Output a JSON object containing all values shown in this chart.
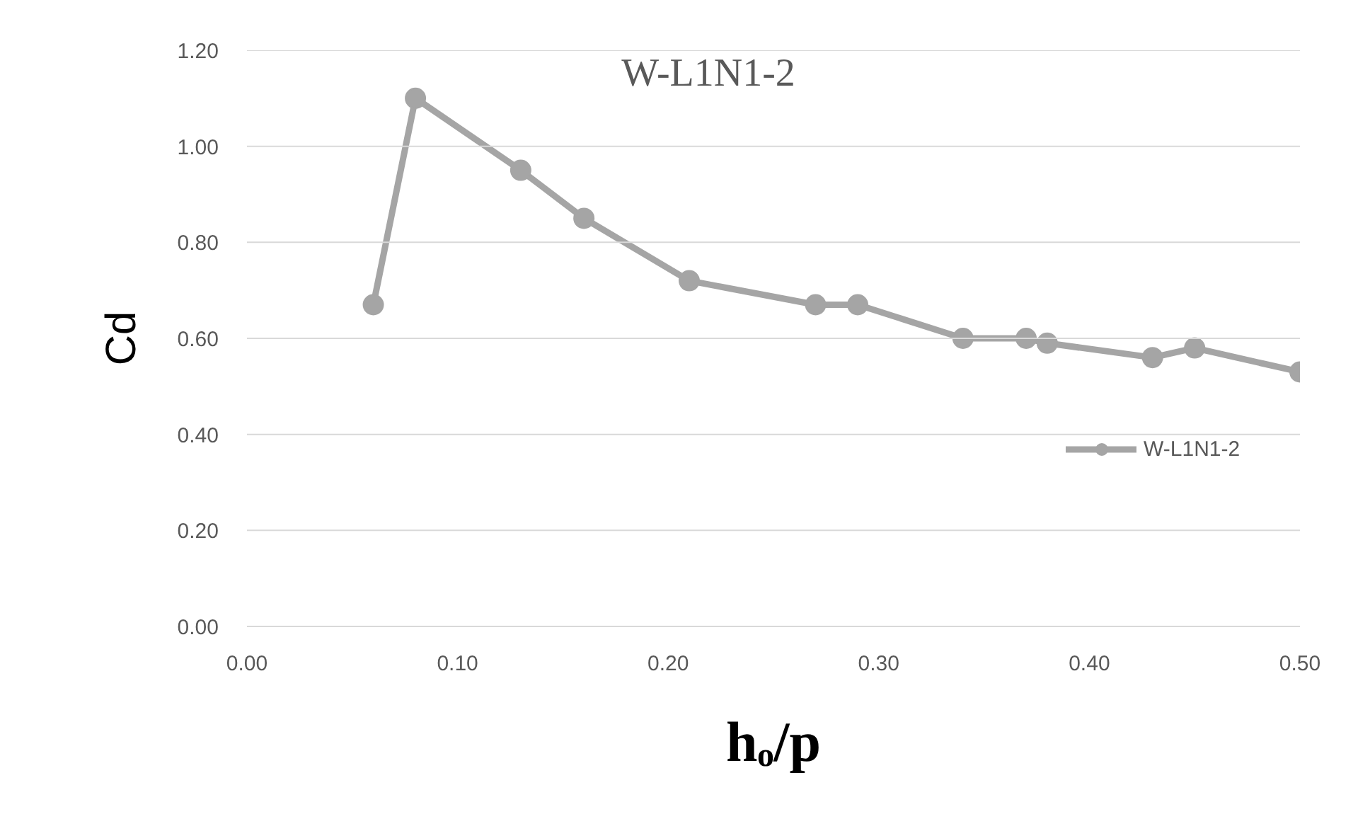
{
  "chart_data": {
    "type": "line",
    "title": "W-L1N1-2",
    "xlabel": "hₒ/p",
    "ylabel": "Cd",
    "x": [
      0.06,
      0.08,
      0.13,
      0.16,
      0.21,
      0.27,
      0.29,
      0.34,
      0.37,
      0.38,
      0.43,
      0.45,
      0.5
    ],
    "series": [
      {
        "name": "W-L1N1-2",
        "color": "#a5a5a5",
        "values": [
          0.67,
          1.1,
          0.95,
          0.85,
          0.72,
          0.67,
          0.67,
          0.6,
          0.6,
          0.59,
          0.56,
          0.58,
          0.53
        ]
      }
    ],
    "xlim": [
      0,
      0.5
    ],
    "xticks": [
      {
        "value": 0,
        "label": "0.00"
      },
      {
        "value": 0.1,
        "label": "0.10"
      },
      {
        "value": 0.2,
        "label": "0.20"
      },
      {
        "value": 0.3,
        "label": "0.30"
      },
      {
        "value": 0.4,
        "label": "0.40"
      },
      {
        "value": 0.5,
        "label": "0.50"
      }
    ],
    "ylim": [
      0,
      1.2
    ],
    "yticks": [
      {
        "value": 0,
        "label": "0.00"
      },
      {
        "value": 0.2,
        "label": "0.20"
      },
      {
        "value": 0.4,
        "label": "0.40"
      },
      {
        "value": 0.6,
        "label": "0.60"
      },
      {
        "value": 0.8,
        "label": "0.80"
      },
      {
        "value": 1.0,
        "label": "1.00"
      },
      {
        "value": 1.2,
        "label": "1.20"
      }
    ],
    "grid": "y",
    "legend": "right",
    "marker": "circle",
    "line_style": "solid"
  }
}
